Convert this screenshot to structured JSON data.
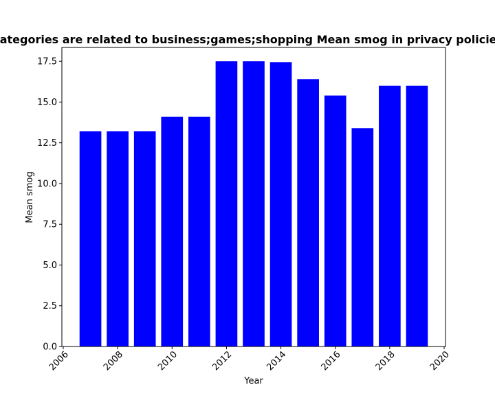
{
  "chart_data": {
    "type": "bar",
    "title": "Categories are related to business;games;shopping Mean smog in privacy policies",
    "xlabel": "Year",
    "ylabel": "Mean smog",
    "x": [
      2007,
      2008,
      2009,
      2010,
      2011,
      2012,
      2013,
      2014,
      2015,
      2016,
      2017,
      2018,
      2019
    ],
    "values": [
      13.2,
      13.2,
      13.2,
      14.1,
      14.1,
      17.5,
      17.5,
      17.45,
      16.4,
      15.4,
      13.4,
      16.0,
      16.0
    ],
    "xlim": [
      2005.95,
      2020.05
    ],
    "ylim": [
      0,
      18.35
    ],
    "xticks": [
      2006,
      2008,
      2010,
      2012,
      2014,
      2016,
      2018,
      2020
    ],
    "xtick_labels": [
      "2006",
      "2008",
      "2010",
      "2012",
      "2014",
      "2016",
      "2018",
      "2020"
    ],
    "yticks": [
      0,
      2.5,
      5,
      7.5,
      10,
      12.5,
      15,
      17.5
    ],
    "ytick_labels": [
      "0.0",
      "2.5",
      "5.0",
      "7.5",
      "10.0",
      "12.5",
      "15.0",
      "17.5"
    ],
    "bar_color": "#0000ff",
    "grid": false,
    "legend": "none"
  }
}
